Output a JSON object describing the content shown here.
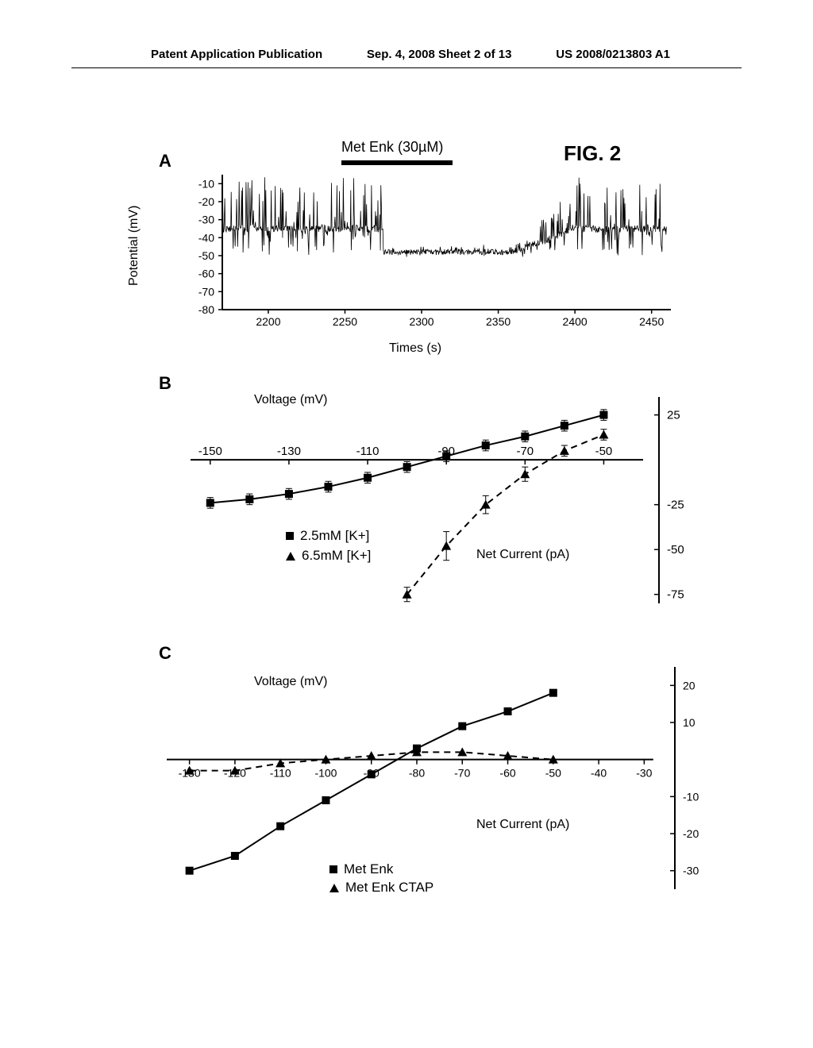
{
  "header": {
    "left": "Patent Application Publication",
    "center": "Sep. 4, 2008  Sheet 2 of 13",
    "right": "US 2008/0213803 A1"
  },
  "figure_label": "FIG. 2",
  "panelA": {
    "label": "A",
    "treatment": "Met Enk (30µM)",
    "ylabel": "Potential (mV)",
    "xlabel": "Times (s)",
    "yticks": [
      "-10",
      "-20",
      "-30",
      "-40",
      "-50",
      "-60",
      "-70",
      "-80"
    ],
    "xticks": [
      "2200",
      "2250",
      "2300",
      "2350",
      "2400",
      "2450"
    ],
    "xlim": [
      2170,
      2460
    ],
    "ylim": [
      -80,
      -5
    ],
    "baseline": -35,
    "treatment_start": 2260,
    "treatment_end": 2330,
    "hyperpolarize_to": -48
  },
  "panelB": {
    "label": "B",
    "xlabel": "Voltage (mV)",
    "ylabel": "Net Current (pA)",
    "xticks": [
      "-150",
      "-130",
      "-110",
      "-90",
      "-70",
      "-50"
    ],
    "yticks": [
      "25",
      "-25",
      "-50",
      "-75"
    ],
    "xlim": [
      -155,
      -40
    ],
    "ylim": [
      -80,
      35
    ],
    "legend": [
      {
        "marker": "square",
        "text": "2.5mM [K+]"
      },
      {
        "marker": "triangle",
        "text": "6.5mM [K+]"
      }
    ],
    "series_sq": {
      "x": [
        -150,
        -140,
        -130,
        -120,
        -110,
        -100,
        -90,
        -80,
        -70,
        -60,
        -50
      ],
      "y": [
        -24,
        -22,
        -19,
        -15,
        -10,
        -4,
        2,
        8,
        13,
        19,
        25
      ],
      "err": [
        3,
        3,
        3,
        3,
        3,
        3,
        3,
        3,
        3,
        3,
        3
      ]
    },
    "series_tri": {
      "x": [
        -100,
        -90,
        -80,
        -70,
        -60,
        -50
      ],
      "y": [
        -75,
        -48,
        -25,
        -8,
        5,
        14
      ],
      "err": [
        4,
        8,
        5,
        4,
        3,
        3
      ]
    }
  },
  "panelC": {
    "label": "C",
    "xlabel": "Voltage (mV)",
    "ylabel": "Net Current (pA)",
    "xticks": [
      "-130",
      "-120",
      "-110",
      "-100",
      "-90",
      "-80",
      "-70",
      "-60",
      "-50",
      "-40",
      "-30"
    ],
    "yticks": [
      "20",
      "10",
      "-10",
      "-20",
      "-30"
    ],
    "xlim": [
      -135,
      -25
    ],
    "ylim": [
      -35,
      25
    ],
    "legend": [
      {
        "marker": "square",
        "text": "Met Enk"
      },
      {
        "marker": "triangle",
        "text": "Met Enk CTAP"
      }
    ],
    "series_sq": {
      "x": [
        -130,
        -120,
        -110,
        -100,
        -90,
        -80,
        -70,
        -60,
        -50
      ],
      "y": [
        -30,
        -26,
        -18,
        -11,
        -4,
        3,
        9,
        13,
        18
      ]
    },
    "series_tri": {
      "x": [
        -130,
        -120,
        -110,
        -100,
        -90,
        -80,
        -70,
        -60,
        -50
      ],
      "y": [
        -3,
        -3,
        -1,
        0,
        1,
        2,
        2,
        1,
        0
      ]
    }
  },
  "colors": {
    "line": "#000000",
    "background": "#ffffff"
  }
}
